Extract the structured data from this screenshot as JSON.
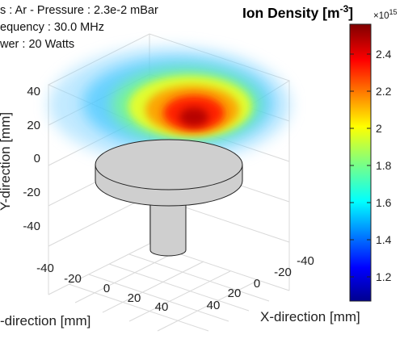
{
  "info_lines": [
    "s : Ar - Pressure : 2.3e-2 mBar",
    "equency : 30.0 MHz",
    "wer : 20 Watts"
  ],
  "colorbar": {
    "title_prefix": "Ion Density [m",
    "title_exponent": "-3",
    "title_suffix": "]",
    "multiplier": "×10",
    "multiplier_exponent": "15",
    "range": [
      1.1,
      2.55
    ],
    "tick_labels": [
      "2.4",
      "2.2",
      "2",
      "1.8",
      "1.6",
      "1.4",
      "1.2"
    ],
    "colormap": "jet"
  },
  "chart_data": {
    "type": "heatmap",
    "subtype": "3d-volume-slice",
    "title": "",
    "zlabel": "Y-direction [mm]",
    "xlabel": "-direction [mm]",
    "ylabel": "X-direction [mm]",
    "z_ticks": [
      "40",
      "20",
      "0",
      "-20",
      "-40"
    ],
    "x_ticks": [
      "-40",
      "-20",
      "0",
      "20",
      "40"
    ],
    "y_ticks": [
      "-40",
      "-20",
      "0",
      "20",
      "40"
    ],
    "density_peak": 2.5,
    "density_min": 1.1,
    "grid": true
  }
}
